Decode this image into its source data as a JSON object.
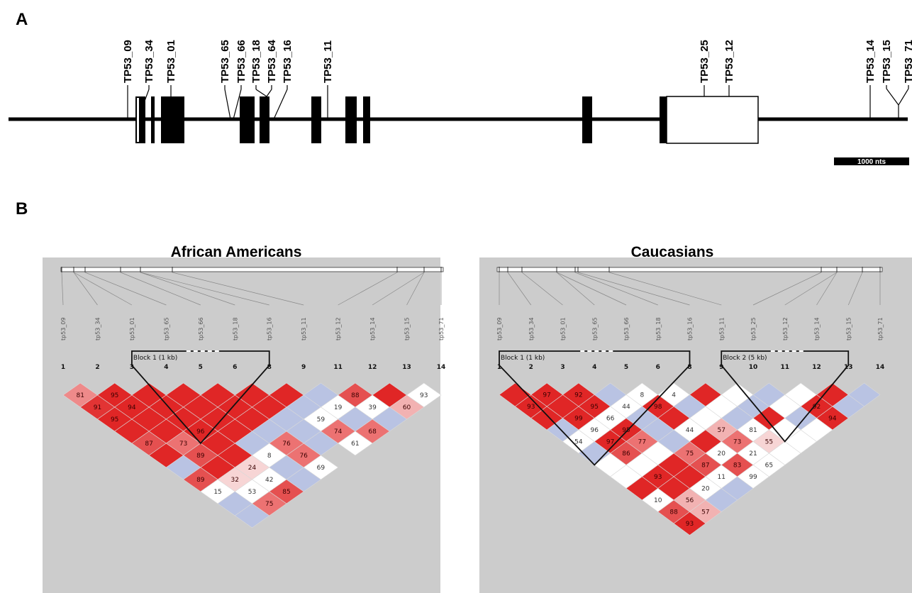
{
  "panel_a": {
    "letter": "A",
    "snp_labels": [
      "TP53_09",
      "TP53_34",
      "TP53_01",
      "TP53_65",
      "TP53_66",
      "TP53_18",
      "TP53_64",
      "TP53_16",
      "TP53_11",
      "TP53_25",
      "TP53_12",
      "TP53_14",
      "TP53_15",
      "TP53_71"
    ],
    "scale_label": "1000 nts"
  },
  "panel_b": {
    "letter": "B",
    "populations": [
      {
        "title": "African Americans",
        "snp_labels": [
          "tp53_09",
          "tp53_34",
          "tp53_01",
          "tp53_65",
          "tp53_66",
          "tp53_18",
          "tp53_16",
          "tp53_11",
          "tp53_12",
          "tp53_14",
          "tp53_15",
          "tp53_71"
        ],
        "indices": [
          "1",
          "2",
          "3",
          "4",
          "5",
          "6",
          "8",
          "9",
          "11",
          "12",
          "13",
          "14"
        ],
        "blocks": [
          {
            "label": "Block 1 (1 kb)",
            "from": 2,
            "to": 6
          }
        ],
        "cells": [
          {
            "i": 0,
            "j": 1,
            "v": "81",
            "c": "#ee8a8a"
          },
          {
            "i": 1,
            "j": 2,
            "v": "95",
            "c": "#e02626"
          },
          {
            "i": 2,
            "j": 3,
            "v": "",
            "c": "#e02626"
          },
          {
            "i": 3,
            "j": 4,
            "v": "",
            "c": "#e02626"
          },
          {
            "i": 4,
            "j": 5,
            "v": "",
            "c": "#e02626"
          },
          {
            "i": 5,
            "j": 6,
            "v": "",
            "c": "#e02626"
          },
          {
            "i": 6,
            "j": 7,
            "v": "",
            "c": "#e02626"
          },
          {
            "i": 7,
            "j": 8,
            "v": "",
            "c": "#b9c3e3"
          },
          {
            "i": 8,
            "j": 9,
            "v": "88",
            "c": "#e55050"
          },
          {
            "i": 9,
            "j": 10,
            "v": "",
            "c": "#e02626"
          },
          {
            "i": 10,
            "j": 11,
            "v": "93",
            "c": "#ffffff"
          },
          {
            "i": 0,
            "j": 2,
            "v": "91",
            "c": "#e23434"
          },
          {
            "i": 1,
            "j": 3,
            "v": "94",
            "c": "#e02626"
          },
          {
            "i": 2,
            "j": 4,
            "v": "",
            "c": "#e02626"
          },
          {
            "i": 3,
            "j": 5,
            "v": "",
            "c": "#e02626"
          },
          {
            "i": 4,
            "j": 6,
            "v": "",
            "c": "#e02626"
          },
          {
            "i": 5,
            "j": 7,
            "v": "",
            "c": "#e02626"
          },
          {
            "i": 6,
            "j": 8,
            "v": "",
            "c": "#b9c3e3"
          },
          {
            "i": 7,
            "j": 9,
            "v": "19",
            "c": "#ffffff"
          },
          {
            "i": 8,
            "j": 10,
            "v": "39",
            "c": "#ffffff"
          },
          {
            "i": 9,
            "j": 11,
            "v": "60",
            "c": "#f2b2b2"
          },
          {
            "i": 0,
            "j": 3,
            "v": "95",
            "c": "#e02626"
          },
          {
            "i": 1,
            "j": 4,
            "v": "",
            "c": "#e02626"
          },
          {
            "i": 2,
            "j": 5,
            "v": "",
            "c": "#e02626"
          },
          {
            "i": 3,
            "j": 6,
            "v": "",
            "c": "#e02626"
          },
          {
            "i": 4,
            "j": 7,
            "v": "",
            "c": "#e02626"
          },
          {
            "i": 5,
            "j": 8,
            "v": "",
            "c": "#b9c3e3"
          },
          {
            "i": 6,
            "j": 9,
            "v": "59",
            "c": "#ffffff"
          },
          {
            "i": 7,
            "j": 10,
            "v": "",
            "c": "#b9c3e3"
          },
          {
            "i": 8,
            "j": 11,
            "v": "",
            "c": "#b9c3e3"
          },
          {
            "i": 0,
            "j": 4,
            "v": "",
            "c": "#e02626"
          },
          {
            "i": 1,
            "j": 5,
            "v": "",
            "c": "#e02626"
          },
          {
            "i": 2,
            "j": 6,
            "v": "96",
            "c": "#e02626"
          },
          {
            "i": 3,
            "j": 7,
            "v": "",
            "c": "#e02626"
          },
          {
            "i": 4,
            "j": 8,
            "v": "",
            "c": "#b9c3e3"
          },
          {
            "i": 5,
            "j": 9,
            "v": "",
            "c": "#b9c3e3"
          },
          {
            "i": 6,
            "j": 10,
            "v": "74",
            "c": "#ec7272"
          },
          {
            "i": 7,
            "j": 11,
            "v": "68",
            "c": "#ec7272"
          },
          {
            "i": 0,
            "j": 5,
            "v": "87",
            "c": "#e55050"
          },
          {
            "i": 1,
            "j": 6,
            "v": "73",
            "c": "#ec7272"
          },
          {
            "i": 2,
            "j": 7,
            "v": "",
            "c": "#e02626"
          },
          {
            "i": 3,
            "j": 8,
            "v": "",
            "c": "#b9c3e3"
          },
          {
            "i": 4,
            "j": 9,
            "v": "76",
            "c": "#ec7272"
          },
          {
            "i": 5,
            "j": 10,
            "v": "",
            "c": "#b9c3e3"
          },
          {
            "i": 6,
            "j": 11,
            "v": "61",
            "c": "#ffffff"
          },
          {
            "i": 0,
            "j": 6,
            "v": "",
            "c": "#e02626"
          },
          {
            "i": 1,
            "j": 7,
            "v": "89",
            "c": "#e55050"
          },
          {
            "i": 2,
            "j": 8,
            "v": "",
            "c": "#e02626"
          },
          {
            "i": 3,
            "j": 9,
            "v": "8",
            "c": "#ffffff"
          },
          {
            "i": 4,
            "j": 10,
            "v": "76",
            "c": "#ec7272"
          },
          {
            "i": 0,
            "j": 7,
            "v": "",
            "c": "#b9c3e3"
          },
          {
            "i": 1,
            "j": 8,
            "v": "",
            "c": "#e02626"
          },
          {
            "i": 2,
            "j": 9,
            "v": "24",
            "c": "#f7d5d5"
          },
          {
            "i": 3,
            "j": 10,
            "v": "",
            "c": "#b9c3e3"
          },
          {
            "i": 4,
            "j": 11,
            "v": "69",
            "c": "#ffffff"
          },
          {
            "i": 0,
            "j": 8,
            "v": "89",
            "c": "#e55050"
          },
          {
            "i": 1,
            "j": 9,
            "v": "32",
            "c": "#f7d5d5"
          },
          {
            "i": 2,
            "j": 10,
            "v": "42",
            "c": "#ffffff"
          },
          {
            "i": 3,
            "j": 11,
            "v": "",
            "c": "#b9c3e3"
          },
          {
            "i": 0,
            "j": 9,
            "v": "15",
            "c": "#ffffff"
          },
          {
            "i": 1,
            "j": 10,
            "v": "53",
            "c": "#ffffff"
          },
          {
            "i": 2,
            "j": 11,
            "v": "85",
            "c": "#e55050"
          },
          {
            "i": 0,
            "j": 10,
            "v": "",
            "c": "#b9c3e3"
          },
          {
            "i": 1,
            "j": 11,
            "v": "75",
            "c": "#ec7272"
          },
          {
            "i": 0,
            "j": 11,
            "v": "",
            "c": "#b9c3e3"
          }
        ]
      },
      {
        "title": "Caucasians",
        "snp_labels": [
          "tp53_09",
          "tp53_34",
          "tp53_01",
          "tp53_65",
          "tp53_66",
          "tp53_18",
          "tp53_16",
          "tp53_11",
          "tp53_25",
          "tp53_12",
          "tp53_14",
          "tp53_15",
          "tp53_71"
        ],
        "indices": [
          "1",
          "2",
          "3",
          "4",
          "5",
          "6",
          "8",
          "9",
          "10",
          "11",
          "12",
          "13",
          "14"
        ],
        "blocks": [
          {
            "label": "Block 1 (1 kb)",
            "from": 0,
            "to": 6
          },
          {
            "label": "Block 2 (5 kb)",
            "from": 7,
            "to": 11
          }
        ],
        "cells": [
          {
            "i": 0,
            "j": 1,
            "v": "",
            "c": "#e02626"
          },
          {
            "i": 1,
            "j": 2,
            "v": "97",
            "c": "#e02626"
          },
          {
            "i": 2,
            "j": 3,
            "v": "92",
            "c": "#e02626"
          },
          {
            "i": 3,
            "j": 4,
            "v": "",
            "c": "#b9c3e3"
          },
          {
            "i": 4,
            "j": 5,
            "v": "8",
            "c": "#ffffff"
          },
          {
            "i": 5,
            "j": 6,
            "v": "4",
            "c": "#ffffff"
          },
          {
            "i": 6,
            "j": 7,
            "v": "",
            "c": "#e02626"
          },
          {
            "i": 7,
            "j": 8,
            "v": "",
            "c": "#ffffff"
          },
          {
            "i": 8,
            "j": 9,
            "v": "",
            "c": "#b9c3e3"
          },
          {
            "i": 9,
            "j": 10,
            "v": "",
            "c": "#ffffff"
          },
          {
            "i": 10,
            "j": 11,
            "v": "",
            "c": "#e02626"
          },
          {
            "i": 11,
            "j": 12,
            "v": "",
            "c": "#b9c3e3"
          },
          {
            "i": 0,
            "j": 2,
            "v": "93",
            "c": "#e02626"
          },
          {
            "i": 1,
            "j": 3,
            "v": "",
            "c": "#e02626"
          },
          {
            "i": 2,
            "j": 4,
            "v": "95",
            "c": "#e02626"
          },
          {
            "i": 3,
            "j": 5,
            "v": "44",
            "c": "#ffffff"
          },
          {
            "i": 4,
            "j": 6,
            "v": "98",
            "c": "#e02626"
          },
          {
            "i": 5,
            "j": 7,
            "v": "",
            "c": "#b9c3e3"
          },
          {
            "i": 6,
            "j": 8,
            "v": "",
            "c": "#ffffff"
          },
          {
            "i": 7,
            "j": 9,
            "v": "",
            "c": "#b9c3e3"
          },
          {
            "i": 8,
            "j": 10,
            "v": "",
            "c": "#ffffff"
          },
          {
            "i": 9,
            "j": 11,
            "v": "92",
            "c": "#e02626"
          },
          {
            "i": 10,
            "j": 12,
            "v": "",
            "c": "#b9c3e3"
          },
          {
            "i": 0,
            "j": 3,
            "v": "",
            "c": "#e02626"
          },
          {
            "i": 1,
            "j": 4,
            "v": "99",
            "c": "#e02626"
          },
          {
            "i": 2,
            "j": 5,
            "v": "66",
            "c": "#ffffff"
          },
          {
            "i": 3,
            "j": 6,
            "v": "",
            "c": "#b9c3e3"
          },
          {
            "i": 4,
            "j": 7,
            "v": "",
            "c": "#e02626"
          },
          {
            "i": 5,
            "j": 8,
            "v": "",
            "c": "#ffffff"
          },
          {
            "i": 6,
            "j": 9,
            "v": "",
            "c": "#b9c3e3"
          },
          {
            "i": 7,
            "j": 10,
            "v": "",
            "c": "#e02626"
          },
          {
            "i": 8,
            "j": 11,
            "v": "",
            "c": "#b9c3e3"
          },
          {
            "i": 9,
            "j": 12,
            "v": "94",
            "c": "#e02626"
          },
          {
            "i": 0,
            "j": 4,
            "v": "",
            "c": "#b9c3e3"
          },
          {
            "i": 1,
            "j": 5,
            "v": "96",
            "c": "#ffffff"
          },
          {
            "i": 2,
            "j": 6,
            "v": "95",
            "c": "#e02626"
          },
          {
            "i": 3,
            "j": 7,
            "v": "",
            "c": "#b9c3e3"
          },
          {
            "i": 4,
            "j": 8,
            "v": "44",
            "c": "#ffffff"
          },
          {
            "i": 5,
            "j": 9,
            "v": "57",
            "c": "#f2b2b2"
          },
          {
            "i": 6,
            "j": 10,
            "v": "81",
            "c": "#ffffff"
          },
          {
            "i": 7,
            "j": 11,
            "v": "",
            "c": "#ffffff"
          },
          {
            "i": 8,
            "j": 12,
            "v": "",
            "c": "#ffffff"
          },
          {
            "i": 0,
            "j": 5,
            "v": "54",
            "c": "#ffffff"
          },
          {
            "i": 1,
            "j": 6,
            "v": "97",
            "c": "#e02626"
          },
          {
            "i": 2,
            "j": 7,
            "v": "77",
            "c": "#ec7272"
          },
          {
            "i": 3,
            "j": 8,
            "v": "",
            "c": "#b9c3e3"
          },
          {
            "i": 4,
            "j": 9,
            "v": "",
            "c": "#e02626"
          },
          {
            "i": 5,
            "j": 10,
            "v": "73",
            "c": "#ec7272"
          },
          {
            "i": 6,
            "j": 11,
            "v": "55",
            "c": "#f7d5d5"
          },
          {
            "i": 7,
            "j": 12,
            "v": "",
            "c": "#ffffff"
          },
          {
            "i": 0,
            "j": 6,
            "v": "",
            "c": "#b9c3e3"
          },
          {
            "i": 1,
            "j": 7,
            "v": "86",
            "c": "#e55050"
          },
          {
            "i": 2,
            "j": 8,
            "v": "",
            "c": "#ffffff"
          },
          {
            "i": 3,
            "j": 9,
            "v": "75",
            "c": "#ec7272"
          },
          {
            "i": 4,
            "j": 10,
            "v": "20",
            "c": "#ffffff"
          },
          {
            "i": 5,
            "j": 11,
            "v": "21",
            "c": "#ffffff"
          },
          {
            "i": 6,
            "j": 12,
            "v": "",
            "c": "#ffffff"
          },
          {
            "i": 0,
            "j": 7,
            "v": "",
            "c": "#ffffff"
          },
          {
            "i": 1,
            "j": 8,
            "v": "",
            "c": "#ffffff"
          },
          {
            "i": 2,
            "j": 9,
            "v": "",
            "c": "#e02626"
          },
          {
            "i": 3,
            "j": 10,
            "v": "87",
            "c": "#e55050"
          },
          {
            "i": 4,
            "j": 11,
            "v": "83",
            "c": "#e55050"
          },
          {
            "i": 5,
            "j": 12,
            "v": "65",
            "c": "#ffffff"
          },
          {
            "i": 0,
            "j": 8,
            "v": "",
            "c": "#ffffff"
          },
          {
            "i": 1,
            "j": 9,
            "v": "93",
            "c": "#e02626"
          },
          {
            "i": 2,
            "j": 10,
            "v": "",
            "c": "#e02626"
          },
          {
            "i": 3,
            "j": 11,
            "v": "11",
            "c": "#ffffff"
          },
          {
            "i": 4,
            "j": 12,
            "v": "99",
            "c": "#ffffff"
          },
          {
            "i": 0,
            "j": 9,
            "v": "",
            "c": "#e02626"
          },
          {
            "i": 1,
            "j": 10,
            "v": "",
            "c": "#e02626"
          },
          {
            "i": 2,
            "j": 11,
            "v": "20",
            "c": "#ffffff"
          },
          {
            "i": 3,
            "j": 12,
            "v": "",
            "c": "#b9c3e3"
          },
          {
            "i": 0,
            "j": 10,
            "v": "10",
            "c": "#ffffff"
          },
          {
            "i": 1,
            "j": 11,
            "v": "56",
            "c": "#f2b2b2"
          },
          {
            "i": 2,
            "j": 12,
            "v": "",
            "c": "#b9c3e3"
          },
          {
            "i": 0,
            "j": 11,
            "v": "88",
            "c": "#e55050"
          },
          {
            "i": 1,
            "j": 12,
            "v": "57",
            "c": "#f2b2b2"
          },
          {
            "i": 0,
            "j": 12,
            "v": "93",
            "c": "#e02626"
          }
        ]
      }
    ]
  }
}
